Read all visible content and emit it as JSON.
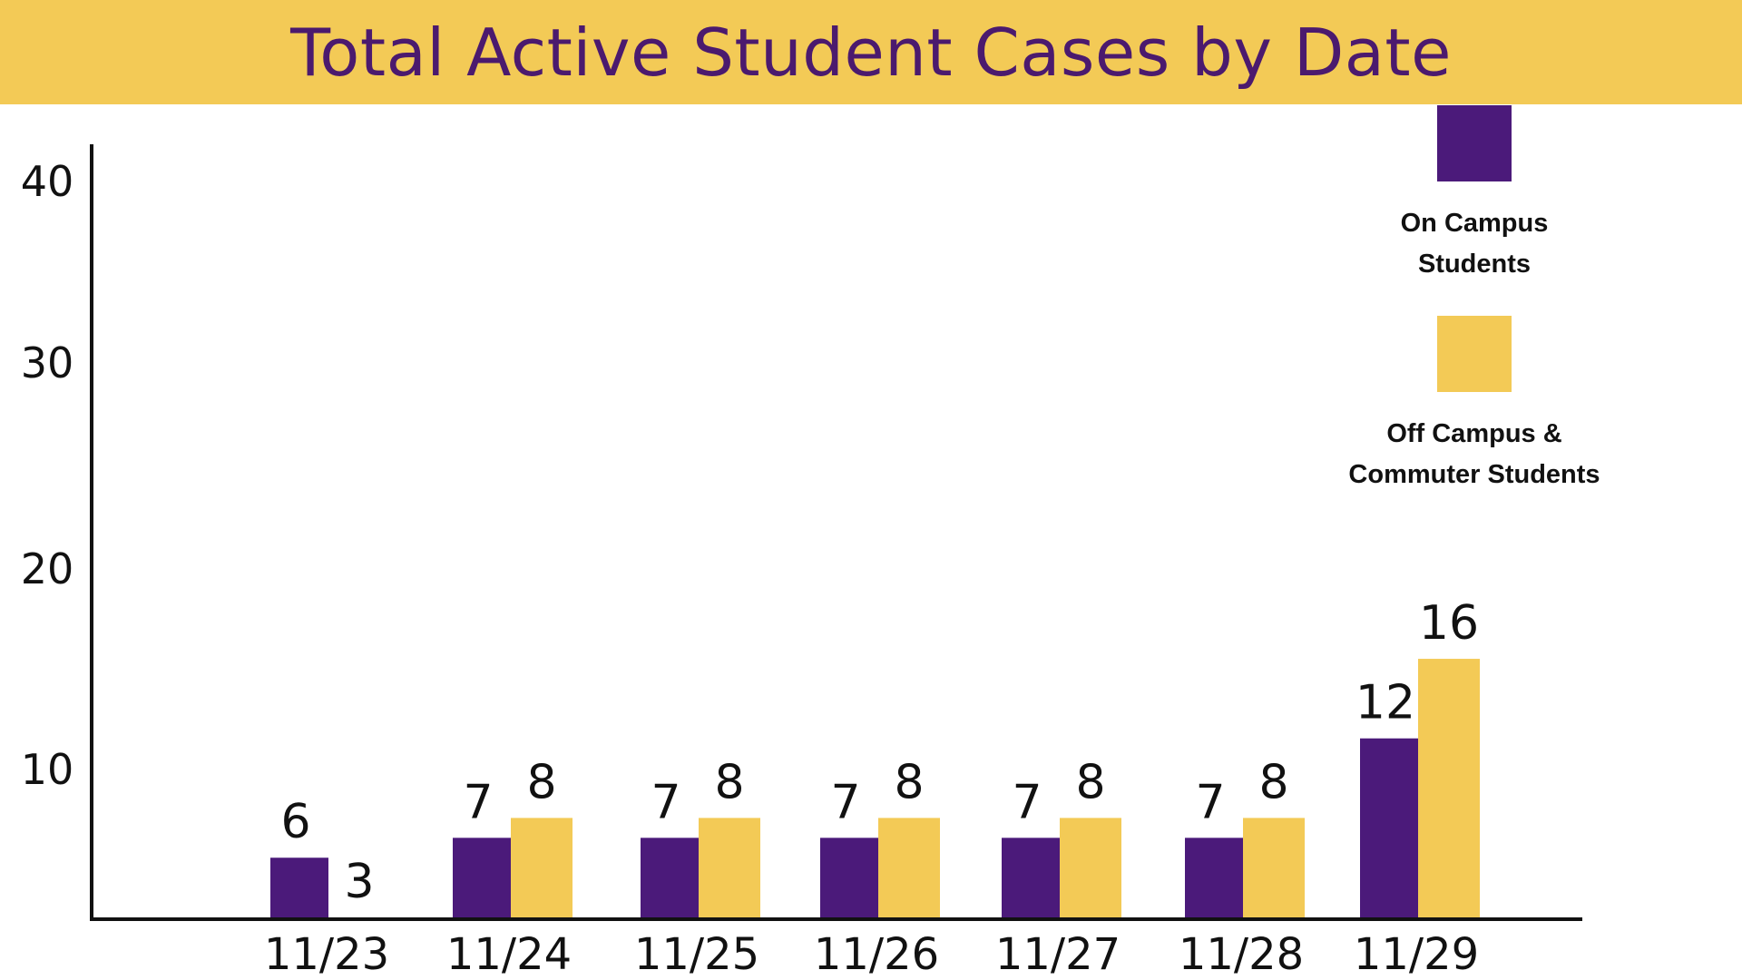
{
  "colors": {
    "banner": "#f3ca56",
    "title": "#4b1a6e",
    "on_campus": "#4b1a7a",
    "off_campus": "#f3ca56",
    "axis": "#111111"
  },
  "chart_data": {
    "type": "bar",
    "title": "Total Active Student Cases by Date",
    "xlabel": "",
    "ylabel": "",
    "categories": [
      "11/23",
      "11/24",
      "11/25",
      "11/26",
      "11/27",
      "11/28",
      "11/29"
    ],
    "series": [
      {
        "name": "On Campus Students",
        "values": [
          6,
          7,
          7,
          7,
          7,
          7,
          12
        ]
      },
      {
        "name": "Off Campus & Commuter Students",
        "values": [
          3,
          8,
          8,
          8,
          8,
          8,
          16
        ]
      }
    ],
    "yticks": [
      10,
      20,
      30,
      40
    ],
    "ylim": [
      3,
      41
    ],
    "grid": false,
    "legend_position": "top-right"
  },
  "legend": {
    "items": [
      {
        "label": "On Campus\nStudents"
      },
      {
        "label": "Off Campus &\nCommuter Students"
      }
    ]
  }
}
